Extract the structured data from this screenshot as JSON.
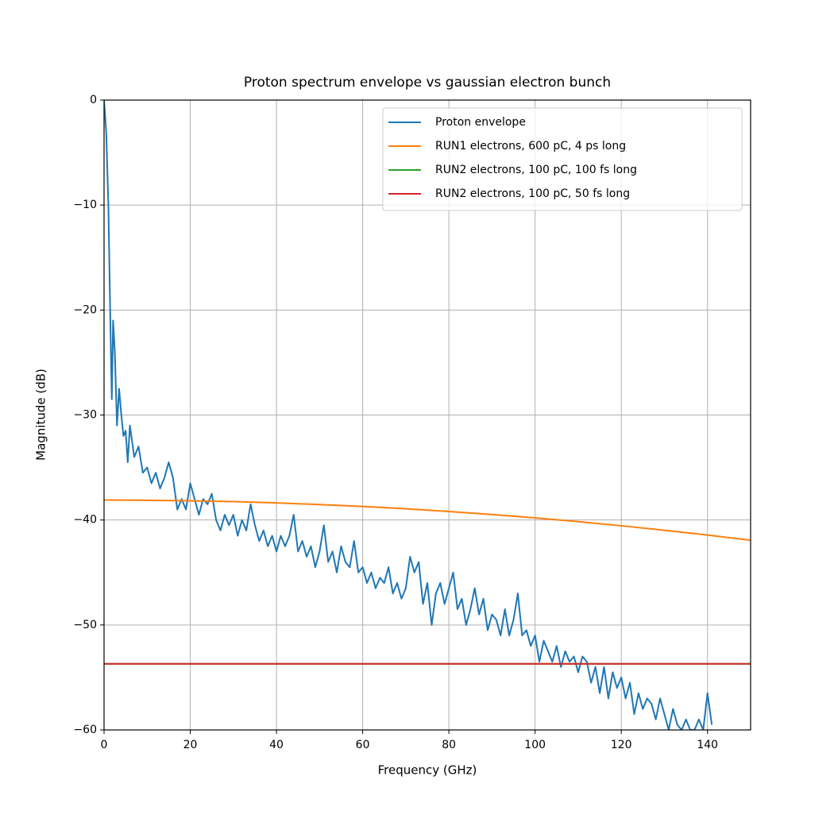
{
  "chart_data": {
    "type": "line",
    "title": "Proton spectrum envelope vs gaussian electron bunch",
    "x_label": "Frequency (GHz)",
    "y_label": "Magnitude (dB)",
    "xlim": [
      0,
      150
    ],
    "ylim": [
      -60,
      0
    ],
    "xticks": [
      0,
      20,
      40,
      60,
      80,
      100,
      120,
      140
    ],
    "yticks": [
      {
        "value": -60,
        "label": "−60"
      },
      {
        "value": -50,
        "label": "−50"
      },
      {
        "value": -40,
        "label": "−40"
      },
      {
        "value": -30,
        "label": "−30"
      },
      {
        "value": -20,
        "label": "−20"
      },
      {
        "value": -10,
        "label": "−10"
      },
      0
    ],
    "grid": true,
    "legend": "upper right",
    "series": [
      {
        "name": "Proton envelope",
        "color": "#1f77b4",
        "x": [
          0,
          0.5,
          1,
          1.5,
          1.8,
          2.1,
          2.5,
          3,
          3.5,
          4,
          4.5,
          5,
          5.5,
          6,
          7,
          8,
          9,
          10,
          11,
          12,
          13,
          14,
          15,
          16,
          17,
          18,
          19,
          20,
          21,
          22,
          23,
          24,
          25,
          26,
          27,
          28,
          29,
          30,
          31,
          32,
          33,
          34,
          35,
          36,
          37,
          38,
          39,
          40,
          41,
          42,
          43,
          44,
          45,
          46,
          47,
          48,
          49,
          50,
          51,
          52,
          53,
          54,
          55,
          56,
          57,
          58,
          59,
          60,
          61,
          62,
          63,
          64,
          65,
          66,
          67,
          68,
          69,
          70,
          71,
          72,
          73,
          74,
          75,
          76,
          77,
          78,
          79,
          80,
          81,
          82,
          83,
          84,
          85,
          86,
          87,
          88,
          89,
          90,
          91,
          92,
          93,
          94,
          95,
          96,
          97,
          98,
          99,
          100,
          101,
          102,
          103,
          104,
          105,
          106,
          107,
          108,
          109,
          110,
          111,
          112,
          113,
          114,
          115,
          116,
          117,
          118,
          119,
          120,
          121,
          122,
          123,
          124,
          125,
          126,
          127,
          128,
          129,
          130,
          131,
          132,
          133,
          134,
          135,
          136,
          137,
          138,
          139,
          140,
          141
        ],
        "values": [
          0,
          -3,
          -10,
          -22,
          -28.5,
          -21,
          -24,
          -31,
          -27.5,
          -30,
          -32,
          -31.5,
          -34.5,
          -31,
          -34,
          -33,
          -35.5,
          -35,
          -36.5,
          -35.5,
          -37,
          -36,
          -34.5,
          -36,
          -39,
          -38,
          -39,
          -36.5,
          -38,
          -39.5,
          -38,
          -38.5,
          -37.5,
          -40,
          -41,
          -39.5,
          -40.5,
          -39.5,
          -41.5,
          -40,
          -41,
          -38.5,
          -40.5,
          -42,
          -41,
          -42.5,
          -41.5,
          -43,
          -41.5,
          -42.5,
          -41.5,
          -39.5,
          -43,
          -42,
          -43.5,
          -42.5,
          -44.5,
          -43,
          -40.5,
          -44,
          -43,
          -45,
          -42.5,
          -44,
          -44.5,
          -42,
          -45,
          -44.5,
          -46,
          -45,
          -46.5,
          -45.5,
          -46,
          -44.5,
          -47,
          -46,
          -47.5,
          -46.5,
          -43.5,
          -45,
          -44,
          -48,
          -46,
          -50,
          -47,
          -46,
          -48,
          -46.5,
          -45,
          -48.5,
          -47.5,
          -50,
          -48.5,
          -46.5,
          -49,
          -47.5,
          -50.5,
          -49,
          -49.5,
          -51,
          -48.5,
          -51,
          -49.5,
          -47,
          -51,
          -50.5,
          -52,
          -51,
          -53.5,
          -51.5,
          -52.5,
          -53.5,
          -52,
          -54,
          -52.5,
          -53.5,
          -53,
          -54.5,
          -53,
          -53.5,
          -55.5,
          -54,
          -56.5,
          -54,
          -57,
          -54.5,
          -56,
          -55,
          -57,
          -55.5,
          -58.5,
          -56.5,
          -58,
          -57,
          -57.5,
          -59,
          -57,
          -58.5,
          -60,
          -58,
          -59.5,
          -60,
          -59,
          -60,
          -60,
          -59,
          -60,
          -56.5,
          -59.5
        ]
      },
      {
        "name": "RUN1 electrons, 600 pC, 4 ps long",
        "color": "#ff7f0e",
        "x": [
          0,
          10,
          20,
          30,
          40,
          50,
          60,
          70,
          80,
          90,
          100,
          110,
          120,
          130,
          140,
          150
        ],
        "values": [
          -38.1,
          -38.12,
          -38.17,
          -38.25,
          -38.37,
          -38.53,
          -38.71,
          -38.93,
          -39.19,
          -39.48,
          -39.8,
          -40.16,
          -40.55,
          -40.98,
          -41.43,
          -41.93
        ]
      },
      {
        "name": "RUN2 electrons, 100 pC, 100 fs long",
        "color": "#2ca02c",
        "x": [
          0,
          150
        ],
        "values": [
          -53.7,
          -53.7
        ]
      },
      {
        "name": "RUN2 electrons, 100 pC, 50 fs long",
        "color": "#d62728",
        "x": [
          0,
          150
        ],
        "values": [
          -53.7,
          -53.7
        ]
      }
    ]
  }
}
